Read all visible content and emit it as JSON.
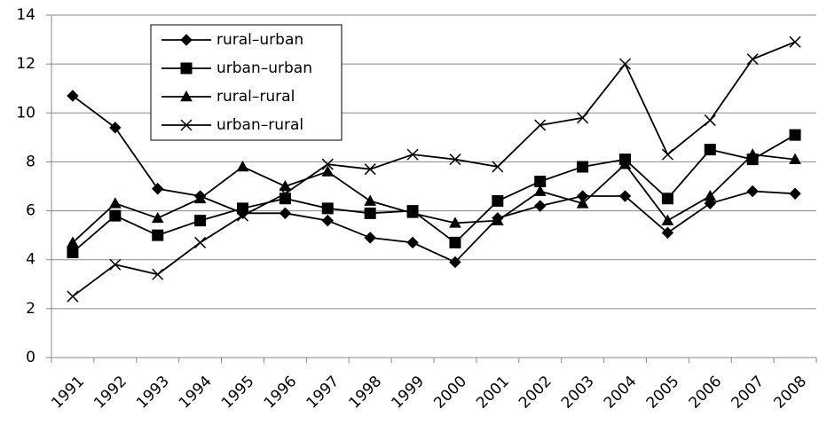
{
  "chart_data": {
    "type": "line",
    "categories": [
      "1991",
      "1992",
      "1993",
      "1994",
      "1995",
      "1996",
      "1997",
      "1998",
      "1999",
      "2000",
      "2001",
      "2002",
      "2003",
      "2004",
      "2005",
      "2006",
      "2007",
      "2008"
    ],
    "series": [
      {
        "name": "rural–urban",
        "color": "#000000",
        "marker": "diamond",
        "values": [
          10.7,
          9.4,
          6.9,
          6.6,
          5.9,
          5.9,
          5.6,
          4.9,
          4.7,
          3.9,
          5.7,
          6.2,
          6.6,
          6.6,
          5.1,
          6.3,
          6.8,
          6.7
        ]
      },
      {
        "name": "urban–urban",
        "color": "#000000",
        "marker": "square",
        "values": [
          4.3,
          5.8,
          5.0,
          5.6,
          6.1,
          6.5,
          6.1,
          5.9,
          6.0,
          4.7,
          6.4,
          7.2,
          7.8,
          8.1,
          6.5,
          8.5,
          8.1,
          9.1
        ]
      },
      {
        "name": "rural–rural",
        "color": "#000000",
        "marker": "triangle",
        "values": [
          4.7,
          6.3,
          5.7,
          6.5,
          7.8,
          7.0,
          7.6,
          6.4,
          5.9,
          5.5,
          5.6,
          6.8,
          6.3,
          7.9,
          5.6,
          6.6,
          8.3,
          8.1
        ]
      },
      {
        "name": "urban–rural",
        "color": "#000000",
        "marker": "x",
        "values": [
          2.5,
          3.8,
          3.4,
          4.7,
          5.8,
          6.7,
          7.9,
          7.7,
          8.3,
          8.1,
          7.8,
          9.5,
          9.8,
          12.0,
          8.3,
          9.7,
          12.2,
          12.9
        ]
      }
    ],
    "ylim": [
      0,
      14
    ],
    "yticks": [
      0,
      2,
      4,
      6,
      8,
      10,
      12,
      14
    ],
    "grid": true,
    "legend": "top-left"
  }
}
